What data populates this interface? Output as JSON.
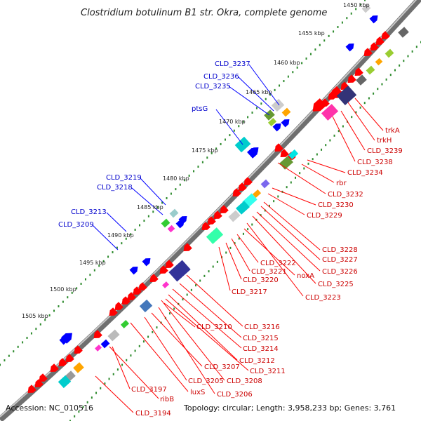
{
  "header": {
    "title": "Clostridium botulinum B1 str. Okra, complete genome"
  },
  "footer": {
    "accession": "Accession: NC_010516",
    "topology": "Topology: circular; Length: 3,958,233 bp; Genes: 3,761"
  },
  "ticks": [
    {
      "label": "1450 kbp"
    },
    {
      "label": "1455 kbp"
    },
    {
      "label": "1460 kbp"
    },
    {
      "label": "1465 kbp"
    },
    {
      "label": "1470 kbp"
    },
    {
      "label": "1475 kbp"
    },
    {
      "label": "1480 kbp"
    },
    {
      "label": "1485 kbp"
    },
    {
      "label": "1490 kbp"
    },
    {
      "label": "1495 kbp"
    },
    {
      "label": "1500 kbp"
    },
    {
      "label": "1505 kbp"
    }
  ],
  "labels_outer": [
    {
      "label": "CLD_3237"
    },
    {
      "label": "CLD_3236"
    },
    {
      "label": "CLD_3235"
    },
    {
      "label": "ptsG"
    },
    {
      "label": "CLD_3219"
    },
    {
      "label": "CLD_3218"
    },
    {
      "label": "CLD_3213"
    },
    {
      "label": "CLD_3209"
    }
  ],
  "labels_inner": [
    {
      "label": "trkA"
    },
    {
      "label": "trkH"
    },
    {
      "label": "CLD_3239"
    },
    {
      "label": "CLD_3238"
    },
    {
      "label": "CLD_3234"
    },
    {
      "label": "rbr"
    },
    {
      "label": "CLD_3232"
    },
    {
      "label": "CLD_3230"
    },
    {
      "label": "CLD_3229"
    },
    {
      "label": "CLD_3228"
    },
    {
      "label": "CLD_3227"
    },
    {
      "label": "CLD_3226"
    },
    {
      "label": "CLD_3225"
    },
    {
      "label": "CLD_3223"
    },
    {
      "label": "noxA"
    },
    {
      "label": "CLD_3222"
    },
    {
      "label": "CLD_3221"
    },
    {
      "label": "CLD_3220"
    },
    {
      "label": "CLD_3217"
    },
    {
      "label": "CLD_3216"
    },
    {
      "label": "CLD_3215"
    },
    {
      "label": "CLD_3214"
    },
    {
      "label": "CLD_3212"
    },
    {
      "label": "CLD_3211"
    },
    {
      "label": "CLD_3210"
    },
    {
      "label": "CLD_3208"
    },
    {
      "label": "CLD_3207"
    },
    {
      "label": "CLD_3206"
    },
    {
      "label": "CLD_3205"
    },
    {
      "label": "luxS"
    },
    {
      "label": "ribB"
    },
    {
      "label": "CLD_3197"
    },
    {
      "label": "CLD_3194"
    }
  ],
  "colors": {
    "backbone": "#8a8a8a",
    "tick_dots": "#2e8b2e",
    "reverse_gene": "#ff0000",
    "forward_gene": "#0000ff",
    "outer_label": "#0000cc",
    "inner_label": "#cc0000"
  }
}
